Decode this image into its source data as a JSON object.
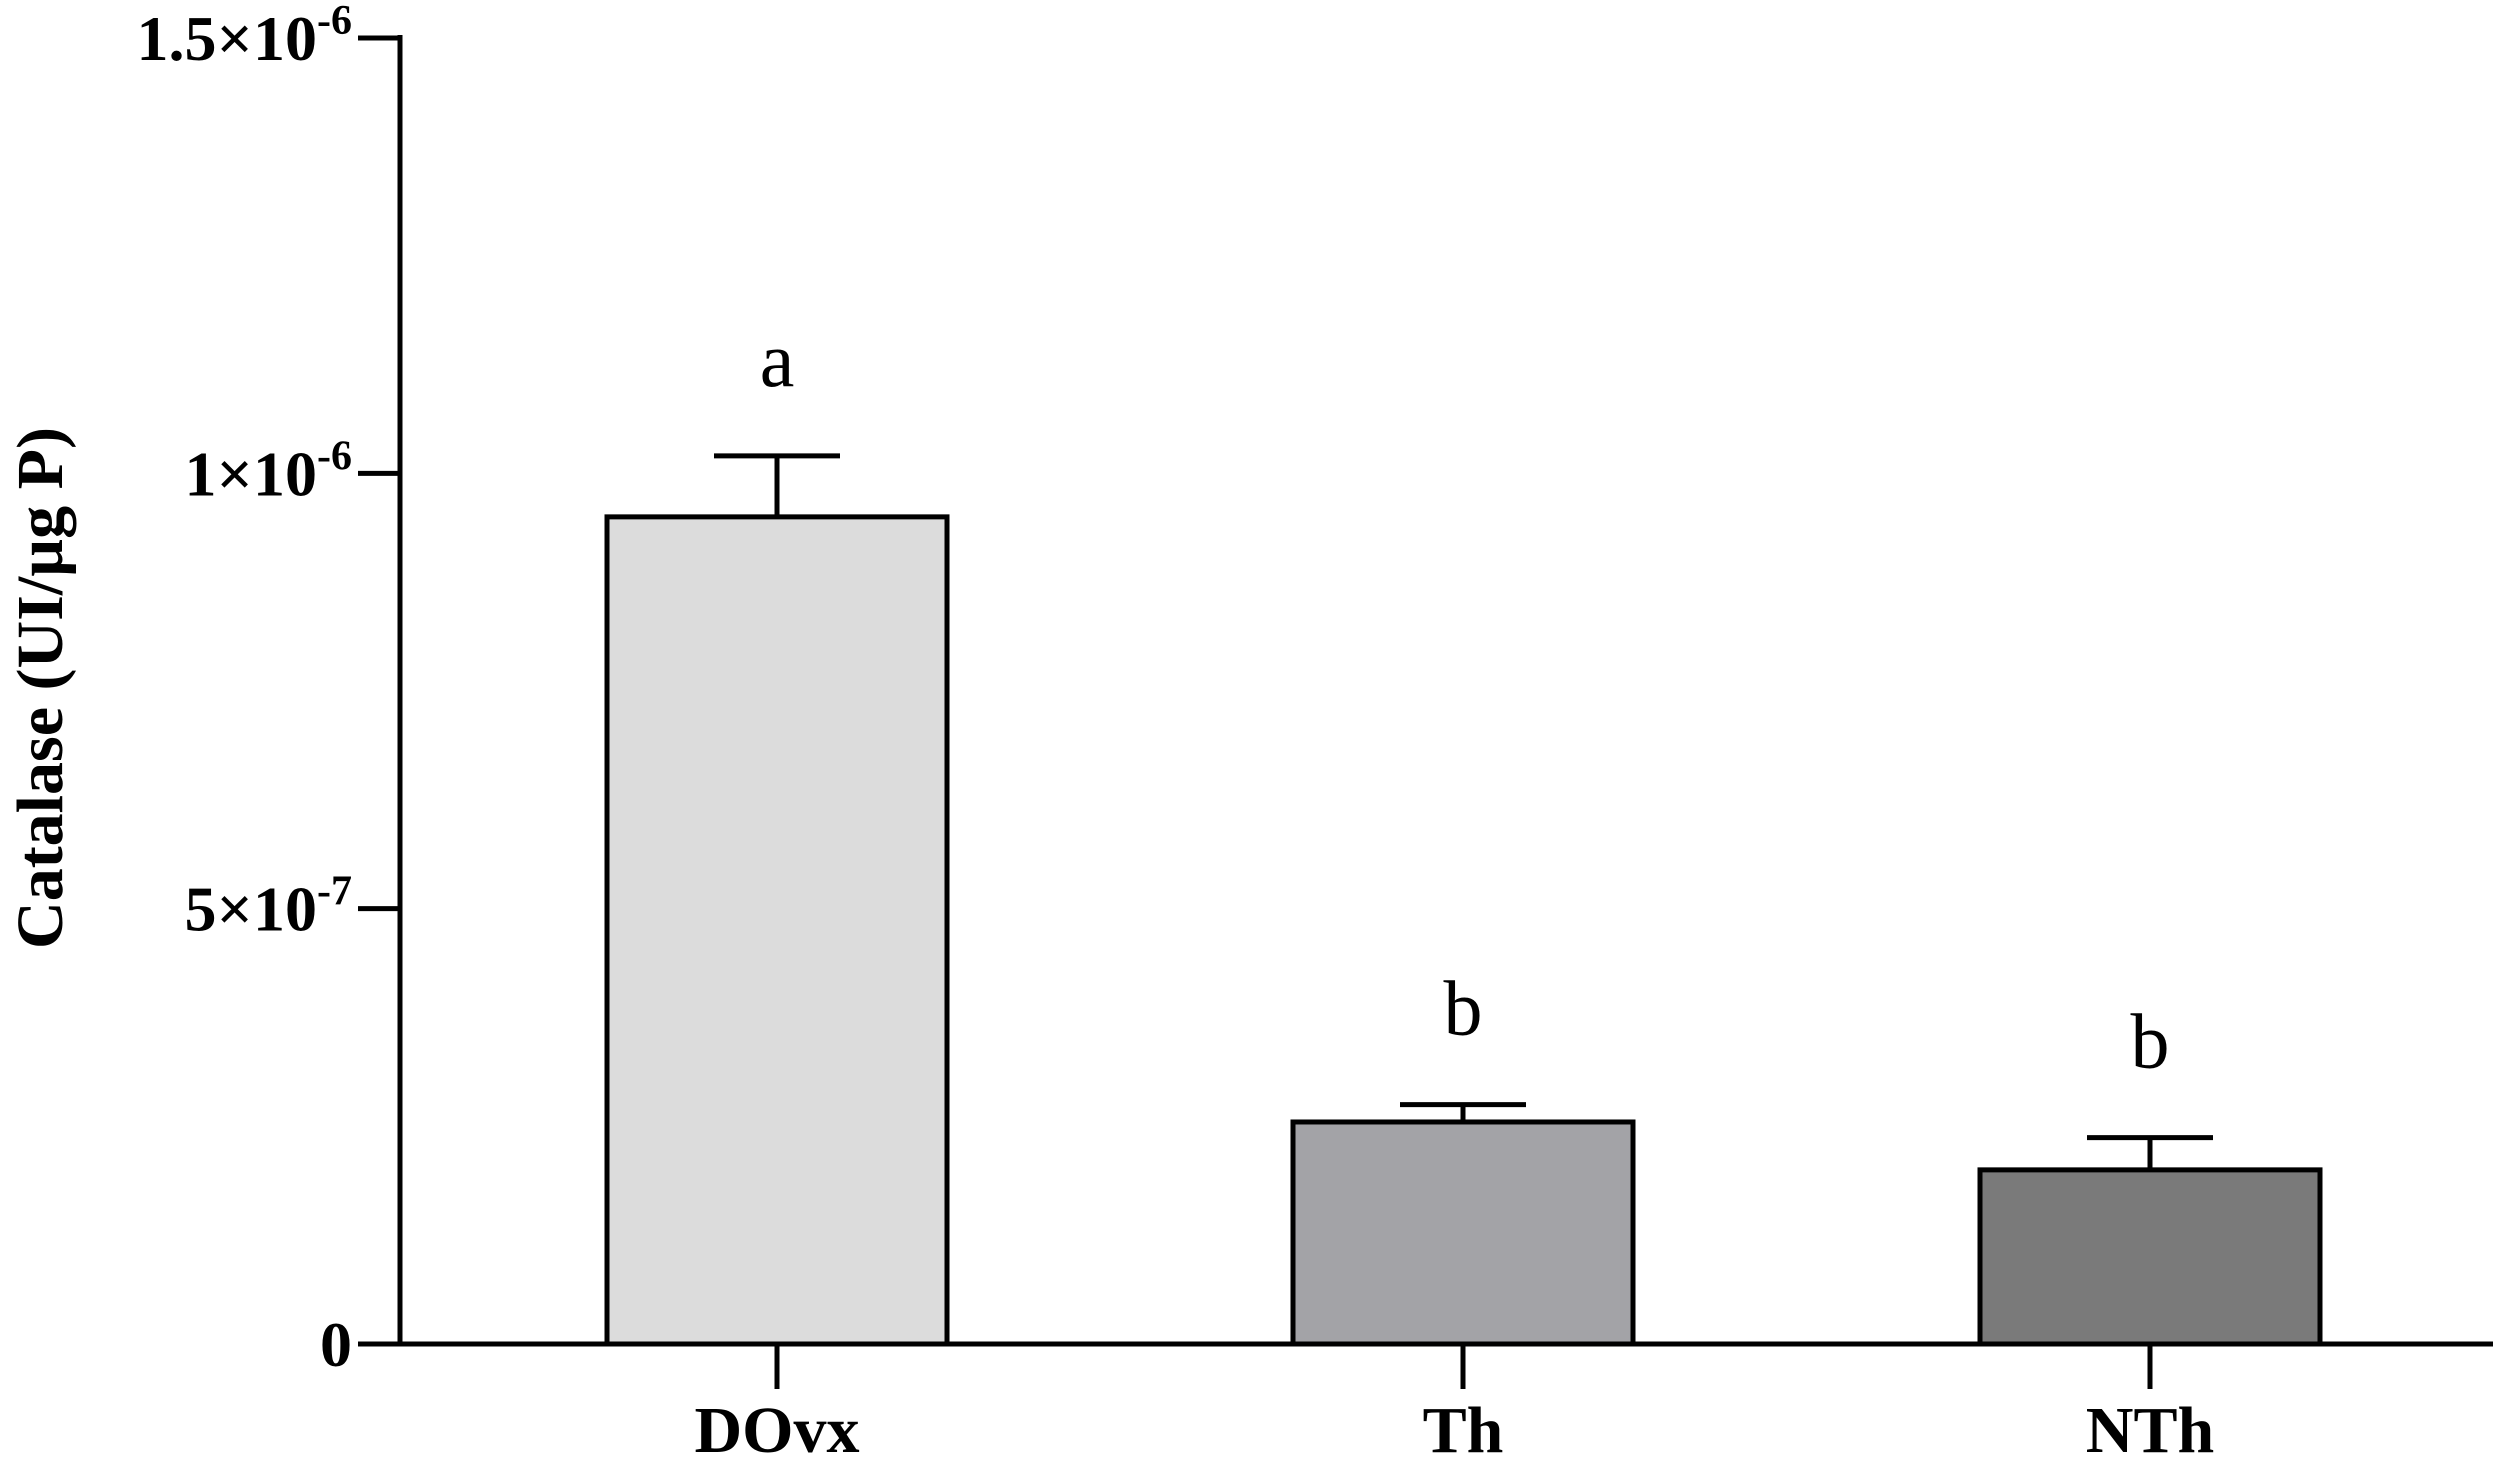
{
  "chart_data": {
    "type": "bar",
    "title": "",
    "xlabel": "",
    "ylabel": "Catalase (UI/µg P)",
    "ylim": [
      0,
      1.5e-06
    ],
    "yticks": [
      {
        "value": 0,
        "mantissa": "0",
        "exponent": ""
      },
      {
        "value": 5e-07,
        "mantissa": "5×10",
        "exponent": "-7"
      },
      {
        "value": 1e-06,
        "mantissa": "1×10",
        "exponent": "-6"
      },
      {
        "value": 1.5e-06,
        "mantissa": "1.5×10",
        "exponent": "-6"
      }
    ],
    "categories": [
      "DOvx",
      "Th",
      "NTh"
    ],
    "values": [
      9.5e-07,
      2.55e-07,
      2e-07
    ],
    "error_upper": [
      1.02e-06,
      2.75e-07,
      2.37e-07
    ],
    "annotations": [
      "a",
      "b",
      "b"
    ],
    "colors": [
      "#dcdcdc",
      "#a3a3a7",
      "#7a7a7a"
    ],
    "grid": false,
    "legend": "none"
  }
}
